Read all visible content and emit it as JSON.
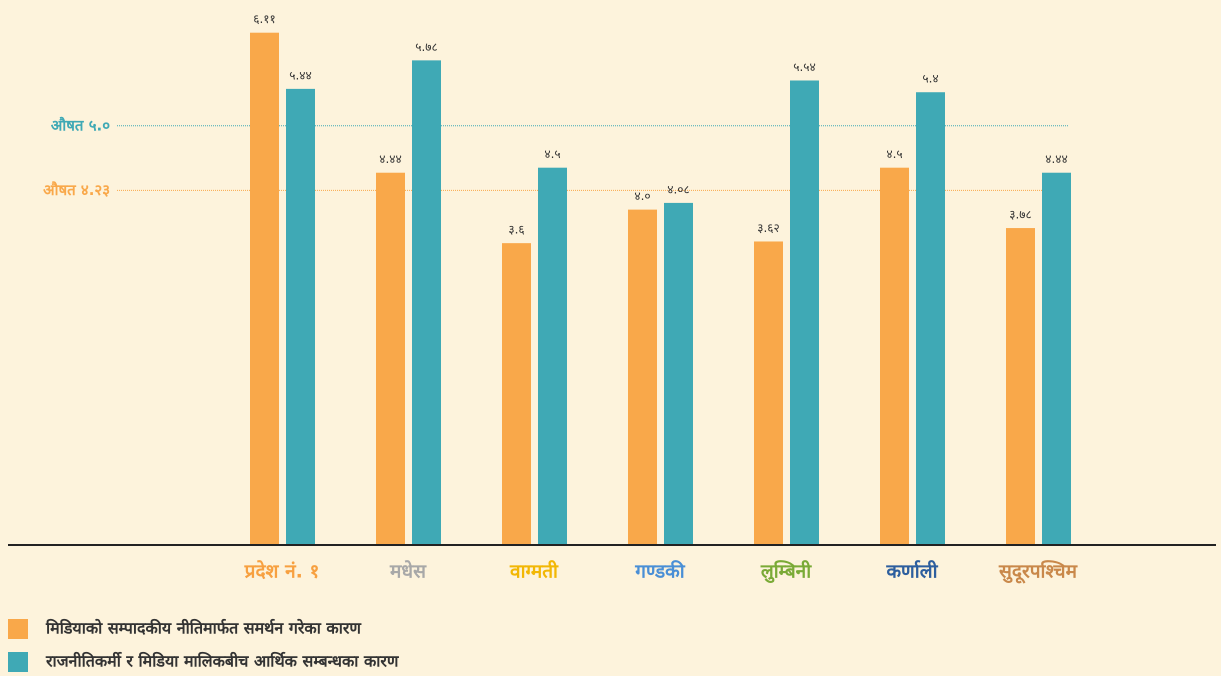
{
  "chart_data": {
    "type": "bar",
    "categories": [
      "प्रदेश नं. १",
      "मधेस",
      "वाग्मती",
      "गण्डकी",
      "लुम्बिनी",
      "कर्णाली",
      "सुदूरपश्चिम"
    ],
    "category_colors": [
      "#f7a040",
      "#a8a8a8",
      "#f2b705",
      "#4a8fd6",
      "#7aaa36",
      "#2d5e9e",
      "#c9884a"
    ],
    "series": [
      {
        "name": "मिडियाको सम्पादकीय नीतिमार्फत समर्थन गरेका कारण",
        "color": "#f9a84a",
        "values": [
          6.11,
          4.44,
          3.6,
          4.0,
          3.62,
          4.5,
          3.78
        ],
        "value_labels": [
          "६.११",
          "४.४४",
          "३.६",
          "४.०",
          "३.६२",
          "४.५",
          "३.७८"
        ]
      },
      {
        "name": "राजनीतिकर्मी र मिडिया मालिकबीच आर्थिक सम्बन्धका कारण",
        "color": "#3fa9b5",
        "values": [
          5.44,
          5.78,
          4.5,
          4.08,
          5.54,
          5.4,
          4.44
        ],
        "value_labels": [
          "५.४४",
          "५.७८",
          "४.५",
          "४.०८",
          "५.५४",
          "५.४",
          "४.४४"
        ]
      }
    ],
    "reference_lines": [
      {
        "label": "औषत ५.०",
        "value": 5.0,
        "color": "#3fa9b5"
      },
      {
        "label": "औषत ४.२३",
        "value": 4.23,
        "color": "#f9a84a"
      }
    ],
    "ylim": [
      0,
      6.5
    ]
  }
}
